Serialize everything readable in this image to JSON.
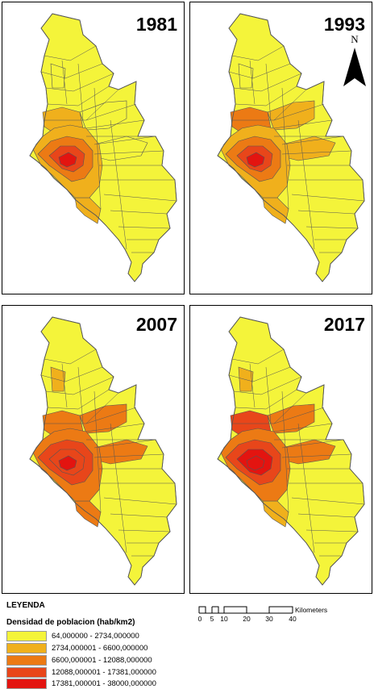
{
  "panels": [
    {
      "year": "1981",
      "variant": 0
    },
    {
      "year": "1993",
      "variant": 1
    },
    {
      "year": "2007",
      "variant": 2
    },
    {
      "year": "2017",
      "variant": 3
    }
  ],
  "north_label": "N",
  "legend": {
    "title": "LEYENDA",
    "subtitle": "Densidad de poblacion (hab/km2)",
    "classes": [
      {
        "label": "64,000000 - 2734,000000",
        "color": "#f4f43a"
      },
      {
        "label": "2734,000001 - 6600,000000",
        "color": "#f0b01c"
      },
      {
        "label": "6600,000001 - 12088,000000",
        "color": "#ec7a14"
      },
      {
        "label": "12088,000001 - 17381,000000",
        "color": "#e8461a"
      },
      {
        "label": "17381,000001 - 38000,000000",
        "color": "#e31410"
      }
    ]
  },
  "scale_bar": {
    "ticks": [
      "0",
      "5",
      "10",
      "20",
      "30",
      "40"
    ],
    "unit": "Kilometers"
  },
  "colors": {
    "low": "#f4f43a",
    "mid_low": "#f0b01c",
    "mid": "#ec7a14",
    "high": "#e8461a",
    "very_high": "#e31410",
    "border": "#555555"
  }
}
